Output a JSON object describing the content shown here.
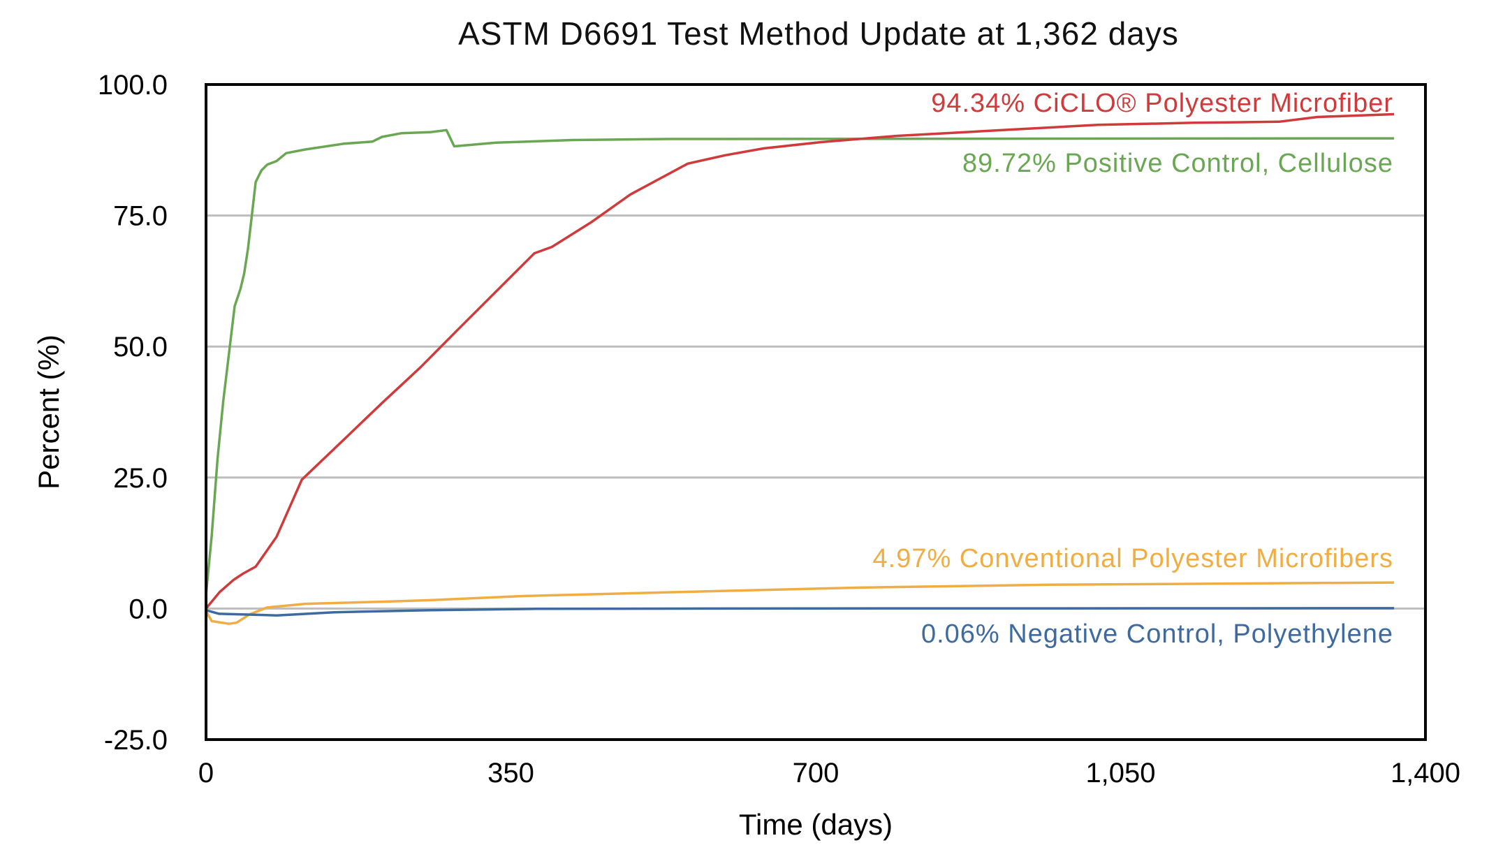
{
  "chart_data": {
    "type": "line",
    "title": "ASTM D6691 Test Method Update at 1,362 days",
    "xlabel": "Time (days)",
    "ylabel": "Percent (%)",
    "xlim": [
      0,
      1400
    ],
    "ylim": [
      -25,
      100
    ],
    "xticks": [
      0,
      350,
      700,
      1050,
      1400
    ],
    "xtick_labels": [
      "0",
      "350",
      "700",
      "1,050",
      "1,400"
    ],
    "yticks": [
      100,
      75,
      50,
      25,
      0,
      -25
    ],
    "ytick_labels": [
      "100.0",
      "75.0",
      "50.0",
      "25.0",
      "0.0",
      "-25.0"
    ],
    "grid": "horizontal",
    "series": [
      {
        "name": "Positive Control, Cellulose",
        "label": "89.72% Positive Control, Cellulose",
        "color": "#6aa753",
        "x": [
          0,
          6.6,
          13.2,
          19.7,
          26.3,
          32.9,
          39.5,
          43.9,
          48.2,
          52.6,
          57,
          63.6,
          70.2,
          81,
          92,
          114,
          158,
          191,
          202,
          224,
          257,
          276,
          285,
          333,
          421,
          531,
          1364
        ],
        "y": [
          2.7,
          14,
          28.6,
          39.5,
          48.6,
          57.7,
          61,
          64,
          68.7,
          75,
          81.4,
          83.6,
          84.7,
          85.4,
          86.9,
          87.6,
          88.7,
          89.1,
          90,
          90.7,
          90.9,
          91.3,
          88.2,
          88.9,
          89.4,
          89.6,
          89.72
        ]
      },
      {
        "name": "CiCLO® Polyester Microfiber",
        "label": "94.34% CiCLO® Polyester Microfiber",
        "color": "#d03a3a",
        "x": [
          0,
          15.4,
          31.8,
          42.8,
          57,
          81,
          110,
          158,
          202,
          246,
          289,
          333,
          377,
          397,
          443,
          487,
          553,
          596,
          640,
          706,
          794,
          892,
          1024,
          1134,
          1232,
          1276,
          1364
        ],
        "y": [
          0,
          3.1,
          5.5,
          6.7,
          8,
          13.7,
          24.6,
          32.2,
          39.2,
          46,
          53.2,
          60.5,
          67.8,
          69,
          73.8,
          79,
          84.9,
          86.5,
          87.8,
          89,
          90.2,
          91.1,
          92.3,
          92.7,
          92.9,
          93.8,
          94.34
        ]
      },
      {
        "name": "Conventional Polyester Microfibers",
        "label": "4.97% Conventional Polyester Microfibers",
        "color": "#f0ad43",
        "x": [
          0,
          6.6,
          26.3,
          35,
          50,
          70,
          114,
          202,
          257,
          366,
          531,
          750,
          969,
          1364
        ],
        "y": [
          -0.5,
          -2.4,
          -2.9,
          -2.7,
          -1.1,
          0.2,
          0.9,
          1.3,
          1.6,
          2.4,
          3.1,
          4,
          4.55,
          4.97
        ]
      },
      {
        "name": "Negative Control, Polyethylene",
        "label": "0.06% Negative Control, Polyethylene",
        "color": "#3d6aa1",
        "x": [
          0,
          15,
          81,
          147,
          257,
          377,
          700,
          1364
        ],
        "y": [
          -0.3,
          -1.0,
          -1.3,
          -0.7,
          -0.3,
          -0.05,
          0.03,
          0.06
        ]
      }
    ]
  }
}
